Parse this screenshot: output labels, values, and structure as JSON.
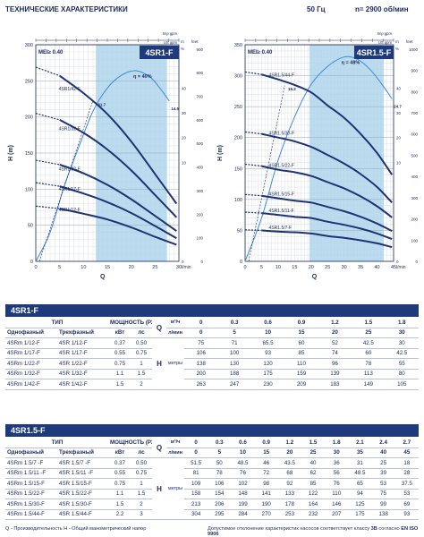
{
  "header": {
    "title": "ТЕХНИЧЕСКИЕ ХАРАКТЕРИСТИКИ",
    "freq": "50 Гц",
    "speed": "n= 2900 об/мин"
  },
  "charts": [
    {
      "title": "4SR1-F",
      "mei": "MEI≥ 0.40",
      "yaxis": "H (m)",
      "xaxis": "Q",
      "xunit": "l/min",
      "top_unit1": "Imp gpm",
      "top_unit2": "US gpm",
      "right_unit1": "m",
      "right_unit2": "feet",
      "right_unit3": "%",
      "xlim": [
        0,
        30
      ],
      "ylim": [
        0,
        300
      ],
      "yticks": [
        0,
        50,
        100,
        150,
        200,
        250,
        300
      ],
      "xticks": [
        0,
        5,
        10,
        15,
        20,
        25,
        30
      ],
      "band": [
        12.6,
        27.5
      ],
      "feet_ticks": [
        "0",
        "100",
        "200",
        "300",
        "400",
        "500",
        "600",
        "700",
        "800",
        "900"
      ],
      "pct_ticks": [
        "0",
        "",
        "",
        "",
        "10",
        "20",
        "30",
        "40"
      ],
      "eff_label": "η = 40%",
      "eff_curve": [
        [
          0,
          0
        ],
        [
          3,
          40
        ],
        [
          6,
          105
        ],
        [
          9,
          158
        ],
        [
          12,
          208
        ],
        [
          15,
          240
        ],
        [
          18,
          258
        ],
        [
          21,
          264
        ],
        [
          24,
          255
        ],
        [
          26,
          240
        ],
        [
          28,
          222
        ]
      ],
      "eff_end_label": "14.5",
      "npsh_label": "31.7",
      "models": [
        {
          "name": "4SR1/42-F",
          "points": [
            [
              5,
              257
            ],
            [
              10,
              233
            ],
            [
              15,
              204
            ],
            [
              20,
              166
            ],
            [
              25,
              121
            ],
            [
              29.5,
              80
            ]
          ]
        },
        {
          "name": "4SR1/32-F",
          "points": [
            [
              5,
              196
            ],
            [
              10,
              178
            ],
            [
              15,
              155
            ],
            [
              20,
              126
            ],
            [
              25,
              92
            ],
            [
              29.5,
              61
            ]
          ]
        },
        {
          "name": "4SR1/22-F",
          "points": [
            [
              5,
              134
            ],
            [
              10,
              122
            ],
            [
              15,
              106
            ],
            [
              20,
              86
            ],
            [
              25,
              63
            ],
            [
              29.5,
              42
            ]
          ]
        },
        {
          "name": "4SR1/17-F",
          "points": [
            [
              5,
              104
            ],
            [
              10,
              94
            ],
            [
              15,
              82
            ],
            [
              20,
              67
            ],
            [
              25,
              49
            ],
            [
              29.5,
              32
            ]
          ]
        },
        {
          "name": "4SR1/12-F",
          "points": [
            [
              5,
              73
            ],
            [
              10,
              66
            ],
            [
              15,
              58
            ],
            [
              20,
              47
            ],
            [
              25,
              34
            ],
            [
              29.5,
              23
            ]
          ]
        }
      ]
    },
    {
      "title": "4SR1.5-F",
      "mei": "MEI≥ 0.40",
      "yaxis": "H (m)",
      "xaxis": "Q",
      "xunit": "l/min",
      "top_unit1": "Imp gpm",
      "top_unit2": "US gpm",
      "right_unit1": "m",
      "right_unit2": "feet",
      "right_unit3": "%",
      "xlim": [
        0,
        45
      ],
      "ylim": [
        0,
        350
      ],
      "yticks": [
        0,
        50,
        100,
        150,
        200,
        250,
        300,
        350
      ],
      "xticks": [
        0,
        5,
        10,
        15,
        20,
        25,
        30,
        35,
        40,
        45
      ],
      "band": [
        19.5,
        42
      ],
      "feet_ticks": [
        "0",
        "100",
        "200",
        "300",
        "400",
        "500",
        "600",
        "700",
        "800",
        "900",
        "1000"
      ],
      "pct_ticks": [
        "0",
        "",
        "",
        "",
        "10",
        "20",
        "30",
        "40"
      ],
      "eff_label": "η = 48%",
      "eff_curve": [
        [
          0,
          0
        ],
        [
          5,
          60
        ],
        [
          10,
          140
        ],
        [
          15,
          200
        ],
        [
          20,
          245
        ],
        [
          25,
          270
        ],
        [
          30,
          283
        ],
        [
          34,
          280
        ],
        [
          38,
          265
        ],
        [
          42,
          242
        ],
        [
          44.5,
          225
        ]
      ],
      "eff_end_label": "24.7",
      "npsh_label": "16.2",
      "models": [
        {
          "name": "4SR1.5/44-F",
          "points": [
            [
              5,
              302
            ],
            [
              10,
              294
            ],
            [
              15,
              285
            ],
            [
              20,
              273
            ],
            [
              25,
              252
            ],
            [
              30,
              232
            ],
            [
              35,
              206
            ],
            [
              40,
              175
            ],
            [
              44.5,
              140
            ]
          ]
        },
        {
          "name": "4SR1.5/30-F",
          "points": [
            [
              5,
              206
            ],
            [
              10,
              200
            ],
            [
              15,
              194
            ],
            [
              20,
              185
            ],
            [
              25,
              172
            ],
            [
              30,
              158
            ],
            [
              35,
              141
            ],
            [
              40,
              120
            ],
            [
              44.5,
              95
            ]
          ]
        },
        {
          "name": "4SR1.5/22-F",
          "points": [
            [
              5,
              154
            ],
            [
              10,
              148
            ],
            [
              15,
              144
            ],
            [
              20,
              138
            ],
            [
              25,
              128
            ],
            [
              30,
              118
            ],
            [
              35,
              105
            ],
            [
              40,
              89
            ],
            [
              44.5,
              71
            ]
          ]
        },
        {
          "name": "4SR1.5/15-F",
          "points": [
            [
              5,
              106
            ],
            [
              10,
              102
            ],
            [
              15,
              98
            ],
            [
              20,
              95
            ],
            [
              25,
              88
            ],
            [
              30,
              81
            ],
            [
              35,
              72
            ],
            [
              40,
              61
            ],
            [
              44.5,
              49
            ]
          ]
        },
        {
          "name": "4SR1.5/11-F",
          "points": [
            [
              5,
              78
            ],
            [
              10,
              75
            ],
            [
              15,
              72
            ],
            [
              20,
              70
            ],
            [
              25,
              64
            ],
            [
              30,
              59
            ],
            [
              35,
              53
            ],
            [
              40,
              45
            ],
            [
              44.5,
              36
            ]
          ]
        },
        {
          "name": "4SR1.5/7-F",
          "points": [
            [
              5,
              50
            ],
            [
              10,
              48
            ],
            [
              15,
              47
            ],
            [
              20,
              45
            ],
            [
              25,
              41
            ],
            [
              30,
              38
            ],
            [
              35,
              34
            ],
            [
              40,
              29
            ],
            [
              44.5,
              23
            ]
          ]
        }
      ]
    }
  ],
  "table1": {
    "title": "4SR1-F",
    "type_label": "ТИП",
    "single": "Однофазный",
    "three": "Трехфазный",
    "power": "МОЩНОСТЬ (P2)",
    "kw": "кВт",
    "hp": "лс",
    "q_label": "Q",
    "q_unit1": "м³/ч",
    "q_unit2": "л/мин",
    "h_label": "H",
    "h_unit": "метры",
    "flow_m3h": [
      "0",
      "0.3",
      "0.6",
      "0.9",
      "1.2",
      "1.5",
      "1.8"
    ],
    "flow_lmin": [
      "0",
      "5",
      "10",
      "15",
      "20",
      "25",
      "30"
    ],
    "rows": [
      {
        "single": "4SRm 1/12-F",
        "three": "4SR 1/12-F",
        "kw": "0.37",
        "hp": "0.50",
        "h": [
          "75",
          "71",
          "65.5",
          "60",
          "52",
          "42.5",
          "30"
        ]
      },
      {
        "single": "4SRm 1/17-F",
        "three": "4SR 1/17-F",
        "kw": "0.55",
        "hp": "0.75",
        "h": [
          "106",
          "100",
          "93",
          "85",
          "74",
          "60",
          "42.5"
        ]
      },
      {
        "single": "4SRm 1/22-F",
        "three": "4SR 1/22-F",
        "kw": "0.75",
        "hp": "1",
        "h": [
          "138",
          "130",
          "120",
          "110",
          "96",
          "78",
          "55"
        ]
      },
      {
        "single": "4SRm 1/32-F",
        "three": "4SR 1/32-F",
        "kw": "1.1",
        "hp": "1.5",
        "h": [
          "200",
          "188",
          "175",
          "159",
          "139",
          "113",
          "80"
        ]
      },
      {
        "single": "4SRm 1/42-F",
        "three": "4SR 1/42-F",
        "kw": "1.5",
        "hp": "2",
        "h": [
          "263",
          "247",
          "230",
          "209",
          "183",
          "149",
          "105"
        ]
      }
    ]
  },
  "table2": {
    "title": "4SR1.5-F",
    "type_label": "ТИП",
    "single": "Однофазный",
    "three": "Трехфазный",
    "power": "МОЩНОСТЬ (P2)",
    "kw": "кВт",
    "hp": "лс",
    "q_label": "Q",
    "q_unit1": "м³/ч",
    "q_unit2": "л/мин",
    "h_label": "H",
    "h_unit": "метры",
    "flow_m3h": [
      "0",
      "0.3",
      "0.6",
      "0.9",
      "1.2",
      "1.5",
      "1.8",
      "2.1",
      "2.4",
      "2.7"
    ],
    "flow_lmin": [
      "0",
      "5",
      "10",
      "15",
      "20",
      "25",
      "30",
      "35",
      "40",
      "45"
    ],
    "rows": [
      {
        "single": "4SRm 1.5/7 -F",
        "three": "4SR 1.5/7 -F",
        "kw": "0.37",
        "hp": "0.50",
        "h": [
          "51.5",
          "50",
          "48.5",
          "46",
          "43.5",
          "40",
          "36",
          "31",
          "25",
          "18"
        ]
      },
      {
        "single": "4SRm 1.5/11 -F",
        "three": "4SR 1.5/11 -F",
        "kw": "0.55",
        "hp": "0.75",
        "h": [
          "81",
          "78",
          "76",
          "72",
          "68",
          "62",
          "56",
          "48.5",
          "39",
          "28"
        ]
      },
      {
        "single": "4SRm 1.5/15-F",
        "three": "4SR 1.5/15-F",
        "kw": "0.75",
        "hp": "1",
        "h": [
          "109",
          "106",
          "102",
          "98",
          "92",
          "85",
          "76",
          "65",
          "53",
          "37.5"
        ]
      },
      {
        "single": "4SRm 1.5/22-F",
        "three": "4SR 1.5/22-F",
        "kw": "1.1",
        "hp": "1.5",
        "h": [
          "158",
          "154",
          "148",
          "141",
          "133",
          "122",
          "110",
          "94",
          "75",
          "53"
        ]
      },
      {
        "single": "4SRm 1.5/30-F",
        "three": "4SR 1.5/30-F",
        "kw": "1.5",
        "hp": "2",
        "h": [
          "213",
          "206",
          "199",
          "190",
          "178",
          "164",
          "146",
          "125",
          "99",
          "69"
        ]
      },
      {
        "single": "4SRm 1.5/44-F",
        "three": "4SR 1.5/44-F",
        "kw": "2.2",
        "hp": "3",
        "h": [
          "304",
          "295",
          "284",
          "270",
          "253",
          "232",
          "207",
          "175",
          "138",
          "93"
        ]
      }
    ]
  },
  "footer": {
    "left": "Q - Производительность  H - Общий манометрический напор",
    "right": "Допустимое отклонение характеристик насосов соответствует классу",
    "right_bold": "3B",
    "right_end": "согласно",
    "right_std": "EN ISO 9906"
  }
}
